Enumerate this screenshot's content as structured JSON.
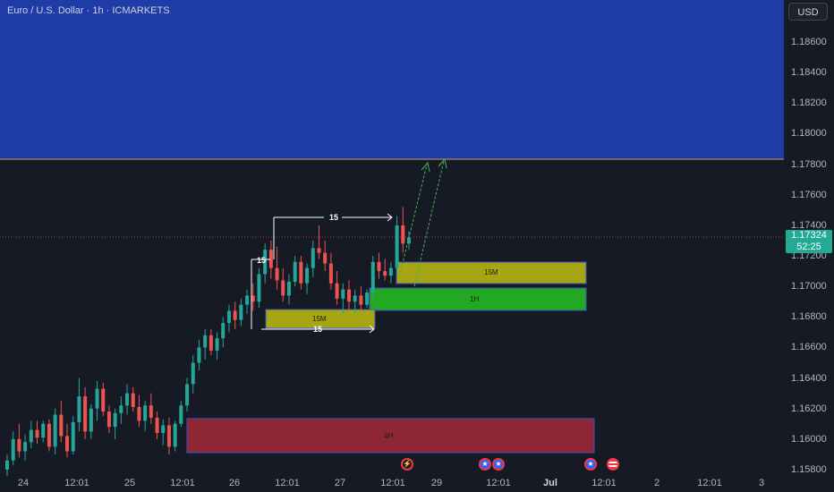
{
  "header": {
    "symbol_title": "Euro / U.S. Dollar · 1h · ICMARKETS"
  },
  "price_axis": {
    "currency": "USD",
    "ticks": [
      "1.18600",
      "1.18400",
      "1.18200",
      "1.18000",
      "1.17800",
      "1.17600",
      "1.17400",
      "1.17200",
      "1.17000",
      "1.16800",
      "1.16600",
      "1.16400",
      "1.16200",
      "1.16000",
      "1.15800"
    ],
    "current_price": "1.17324",
    "countdown": "52:25"
  },
  "time_axis": {
    "ticks": [
      {
        "label": "24",
        "bold": false
      },
      {
        "label": "12:01",
        "bold": false
      },
      {
        "label": "25",
        "bold": false
      },
      {
        "label": "12:01",
        "bold": false
      },
      {
        "label": "26",
        "bold": false
      },
      {
        "label": "12:01",
        "bold": false
      },
      {
        "label": "27",
        "bold": false
      },
      {
        "label": "12:01",
        "bold": false
      },
      {
        "label": "29",
        "bold": false
      },
      {
        "label": "12:01",
        "bold": false
      },
      {
        "label": "Jul",
        "bold": true
      },
      {
        "label": "12:01",
        "bold": false
      },
      {
        "label": "2",
        "bold": false
      },
      {
        "label": "12:01",
        "bold": false
      },
      {
        "label": "3",
        "bold": false
      }
    ]
  },
  "zones": {
    "zone_15m_upper": "15M",
    "zone_1h": "1H",
    "zone_15m_lower": "15M",
    "zone_4h": "4H"
  },
  "annotations": {
    "range_top": "15",
    "range_left": "15",
    "range_bottom": "15"
  },
  "colors": {
    "bull": "#26a69a",
    "bear": "#ef5350",
    "target_zone": "#1e3ba8",
    "zone_15m": "#a6a614",
    "zone_1h": "#22a822",
    "zone_4h": "#8e2633",
    "projection": "#4caf50"
  },
  "chart_data": {
    "type": "candlestick",
    "title": "Euro / U.S. Dollar · 1h · ICMARKETS",
    "ylim": [
      1.1575,
      1.188
    ],
    "last_price": 1.17324,
    "candles": [
      [
        1.158,
        1.159,
        1.1575,
        1.1586
      ],
      [
        1.1586,
        1.1605,
        1.1583,
        1.16
      ],
      [
        1.16,
        1.161,
        1.1588,
        1.1592
      ],
      [
        1.1592,
        1.1603,
        1.1586,
        1.1598
      ],
      [
        1.1598,
        1.1612,
        1.1594,
        1.1606
      ],
      [
        1.1606,
        1.1612,
        1.1597,
        1.1601
      ],
      [
        1.1601,
        1.1612,
        1.1598,
        1.161
      ],
      [
        1.161,
        1.1613,
        1.1592,
        1.1595
      ],
      [
        1.1595,
        1.162,
        1.159,
        1.1616
      ],
      [
        1.1616,
        1.1625,
        1.1598,
        1.1602
      ],
      [
        1.1602,
        1.161,
        1.1588,
        1.1592
      ],
      [
        1.1592,
        1.1615,
        1.159,
        1.1611
      ],
      [
        1.1611,
        1.164,
        1.1605,
        1.1628
      ],
      [
        1.1628,
        1.1634,
        1.16,
        1.1605
      ],
      [
        1.1605,
        1.1623,
        1.16,
        1.162
      ],
      [
        1.162,
        1.1638,
        1.1612,
        1.1633
      ],
      [
        1.1633,
        1.1637,
        1.1615,
        1.1618
      ],
      [
        1.1618,
        1.1622,
        1.1604,
        1.1608
      ],
      [
        1.1608,
        1.162,
        1.16,
        1.1617
      ],
      [
        1.1617,
        1.1628,
        1.161,
        1.1622
      ],
      [
        1.1622,
        1.1636,
        1.1616,
        1.163
      ],
      [
        1.163,
        1.1634,
        1.1618,
        1.1621
      ],
      [
        1.1621,
        1.1629,
        1.1608,
        1.1612
      ],
      [
        1.1612,
        1.1625,
        1.1605,
        1.1622
      ],
      [
        1.1622,
        1.163,
        1.161,
        1.1614
      ],
      [
        1.1614,
        1.1618,
        1.16,
        1.1604
      ],
      [
        1.1604,
        1.1613,
        1.1596,
        1.1609
      ],
      [
        1.1609,
        1.1614,
        1.159,
        1.1595
      ],
      [
        1.1595,
        1.1612,
        1.1592,
        1.161
      ],
      [
        1.161,
        1.1625,
        1.1608,
        1.1622
      ],
      [
        1.1622,
        1.164,
        1.1618,
        1.1636
      ],
      [
        1.1636,
        1.1655,
        1.163,
        1.165
      ],
      [
        1.165,
        1.1665,
        1.1645,
        1.166
      ],
      [
        1.166,
        1.1672,
        1.1652,
        1.1668
      ],
      [
        1.1668,
        1.1672,
        1.1655,
        1.1658
      ],
      [
        1.1658,
        1.167,
        1.1652,
        1.1666
      ],
      [
        1.1666,
        1.168,
        1.166,
        1.1676
      ],
      [
        1.1676,
        1.1688,
        1.167,
        1.1684
      ],
      [
        1.1684,
        1.169,
        1.1672,
        1.1678
      ],
      [
        1.1678,
        1.1692,
        1.1674,
        1.1688
      ],
      [
        1.1688,
        1.1698,
        1.1682,
        1.1694
      ],
      [
        1.1694,
        1.1702,
        1.1684,
        1.169
      ],
      [
        1.169,
        1.1712,
        1.1686,
        1.1708
      ],
      [
        1.1708,
        1.1728,
        1.1702,
        1.1724
      ],
      [
        1.1724,
        1.173,
        1.1705,
        1.1712
      ],
      [
        1.1712,
        1.1726,
        1.1698,
        1.1704
      ],
      [
        1.1704,
        1.1712,
        1.169,
        1.1694
      ],
      [
        1.1694,
        1.1708,
        1.1688,
        1.1703
      ],
      [
        1.1703,
        1.172,
        1.17,
        1.1716
      ],
      [
        1.1716,
        1.172,
        1.1698,
        1.1702
      ],
      [
        1.1702,
        1.1715,
        1.1695,
        1.1712
      ],
      [
        1.1712,
        1.173,
        1.1706,
        1.1725
      ],
      [
        1.1725,
        1.174,
        1.1718,
        1.1722
      ],
      [
        1.1722,
        1.173,
        1.171,
        1.1715
      ],
      [
        1.1715,
        1.1722,
        1.1698,
        1.1702
      ],
      [
        1.1702,
        1.171,
        1.1688,
        1.1692
      ],
      [
        1.1692,
        1.1702,
        1.1682,
        1.1698
      ],
      [
        1.1698,
        1.1704,
        1.1685,
        1.169
      ],
      [
        1.169,
        1.1698,
        1.1682,
        1.1694
      ],
      [
        1.1694,
        1.17,
        1.1684,
        1.1688
      ],
      [
        1.1688,
        1.1698,
        1.1686,
        1.1696
      ],
      [
        1.1696,
        1.172,
        1.1692,
        1.1716
      ],
      [
        1.1716,
        1.1722,
        1.1705,
        1.171
      ],
      [
        1.171,
        1.1718,
        1.1704,
        1.1707
      ],
      [
        1.1707,
        1.1716,
        1.1702,
        1.1712
      ],
      [
        1.1712,
        1.1746,
        1.1708,
        1.174
      ],
      [
        1.174,
        1.1752,
        1.1722,
        1.1728
      ],
      [
        1.1728,
        1.1736,
        1.1724,
        1.1732
      ]
    ]
  }
}
